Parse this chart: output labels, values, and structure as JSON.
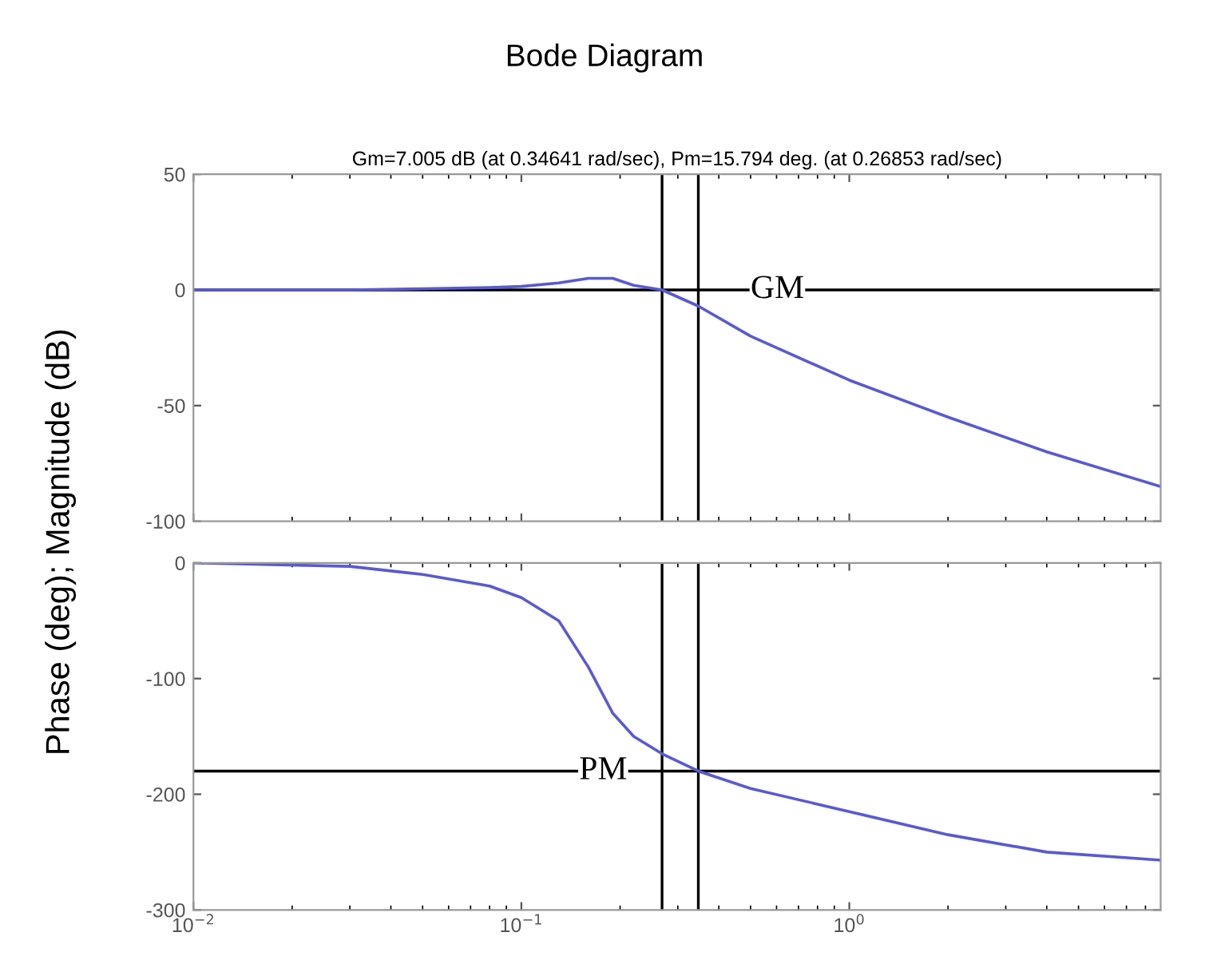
{
  "chart_data": [
    {
      "type": "line",
      "title": "Bode Diagram",
      "subtitle": "Gm=7.005 dB (at 0.34641 rad/sec), Pm=15.794 deg. (at 0.26853 rad/sec)",
      "ylabel": "Phase (deg); Magnitude (dB)",
      "log": "x",
      "xlim": [
        0.01,
        8.9
      ],
      "xticks": [
        {
          "value": 0.01,
          "label": null
        },
        {
          "value": 0.1,
          "label": null
        },
        {
          "value": 1,
          "label": null
        }
      ],
      "tick_labels": "y",
      "ylim": [
        -100,
        50
      ],
      "yticks": [
        -100,
        -50,
        0,
        50
      ],
      "grid": false,
      "legend": false,
      "series": [
        {
          "color": "#5a5ad0",
          "x": [
            0.01,
            0.03,
            0.05,
            0.08,
            0.1,
            0.13,
            0.16,
            0.19,
            0.22,
            0.26853,
            0.34641,
            0.5,
            1,
            2,
            4,
            8.9
          ],
          "values": [
            0,
            0,
            0.5,
            1,
            1.5,
            3,
            5,
            5,
            2,
            0,
            -7,
            -20,
            -39,
            -55,
            -70,
            -85
          ]
        }
      ],
      "ref_lines": [
        {
          "axis": "y",
          "value": 0,
          "color": "#000000"
        },
        {
          "axis": "x",
          "value": 0.26853,
          "color": "#000000"
        },
        {
          "axis": "x",
          "value": 0.34641,
          "color": "#000000"
        }
      ],
      "annotations": [
        {
          "text": "GM",
          "x": 0.5,
          "y": 0
        }
      ]
    },
    {
      "type": "line",
      "log": "x",
      "xlim": [
        0.01,
        8.9
      ],
      "xticks": [
        {
          "value": 0.01,
          "label": "10$^{−2}$"
        },
        {
          "value": 0.1,
          "label": "10$^{−1}$"
        },
        {
          "value": 1,
          "label": "10$^{0}$"
        }
      ],
      "ylim": [
        -300,
        0
      ],
      "yticks": [
        -300,
        -200,
        -100,
        0
      ],
      "grid": false,
      "legend": false,
      "series": [
        {
          "color": "#5a5ad0",
          "x": [
            0.01,
            0.03,
            0.05,
            0.08,
            0.1,
            0.13,
            0.16,
            0.19,
            0.22,
            0.26853,
            0.34641,
            0.5,
            1,
            2,
            4,
            8.9
          ],
          "values": [
            0,
            -3,
            -10,
            -20,
            -30,
            -50,
            -90,
            -130,
            -150,
            -165,
            -180,
            -195,
            -215,
            -235,
            -250,
            -257
          ]
        }
      ],
      "ref_lines": [
        {
          "axis": "y",
          "value": -180,
          "color": "#000000"
        },
        {
          "axis": "x",
          "value": 0.26853,
          "color": "#000000"
        },
        {
          "axis": "x",
          "value": 0.34641,
          "color": "#000000"
        }
      ],
      "annotations": [
        {
          "text": "PM",
          "x": 0.15,
          "y": -180
        }
      ]
    }
  ]
}
